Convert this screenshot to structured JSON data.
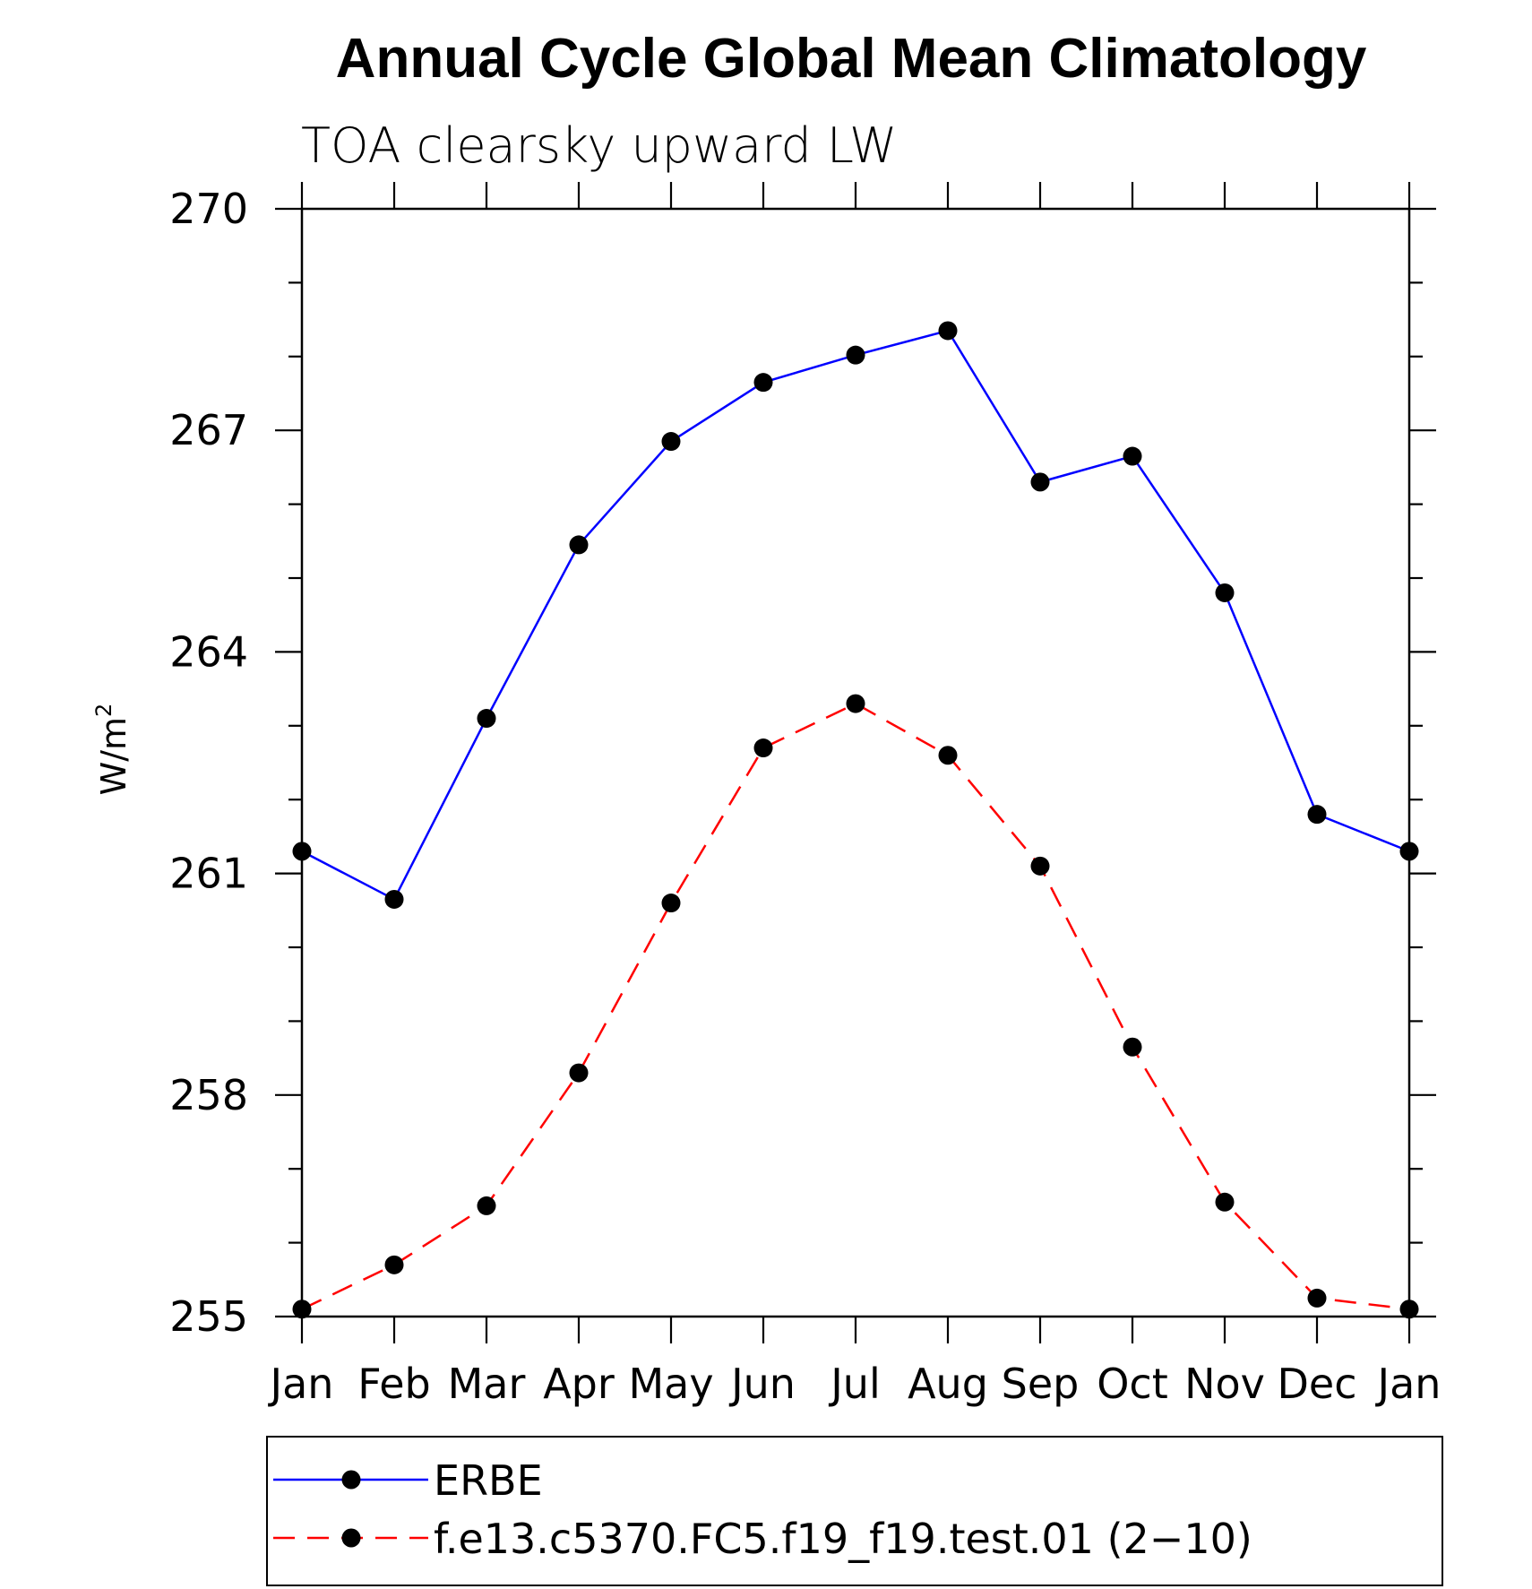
{
  "chart_data": {
    "type": "line",
    "title": "Annual Cycle Global Mean Climatology",
    "subtitle": "TOA clearsky upward LW",
    "xlabel": "",
    "ylabel": "W/m",
    "ylabel_superscript": "2",
    "categories": [
      "Jan",
      "Feb",
      "Mar",
      "Apr",
      "May",
      "Jun",
      "Jul",
      "Aug",
      "Sep",
      "Oct",
      "Nov",
      "Dec",
      "Jan"
    ],
    "ylim": [
      255,
      270
    ],
    "yticks": [
      255,
      258,
      261,
      264,
      267,
      270
    ],
    "yminor_step": 1,
    "grid": false,
    "legend_position": "bottom",
    "series": [
      {
        "name": "ERBE",
        "color": "#0000ff",
        "dash": "solid",
        "marker": "filled-circle",
        "values": [
          261.3,
          260.65,
          263.1,
          265.45,
          266.85,
          267.65,
          268.02,
          268.35,
          266.3,
          266.65,
          264.8,
          261.8,
          261.3
        ]
      },
      {
        "name": "f.e13.c5370.FC5.f19_f19.test.01 (2−10)",
        "color": "#ff0000",
        "dash": "dashed",
        "marker": "filled-circle",
        "values": [
          255.1,
          255.7,
          256.5,
          258.3,
          260.6,
          262.7,
          263.3,
          262.6,
          261.1,
          258.65,
          256.55,
          255.25,
          255.1
        ]
      }
    ]
  }
}
